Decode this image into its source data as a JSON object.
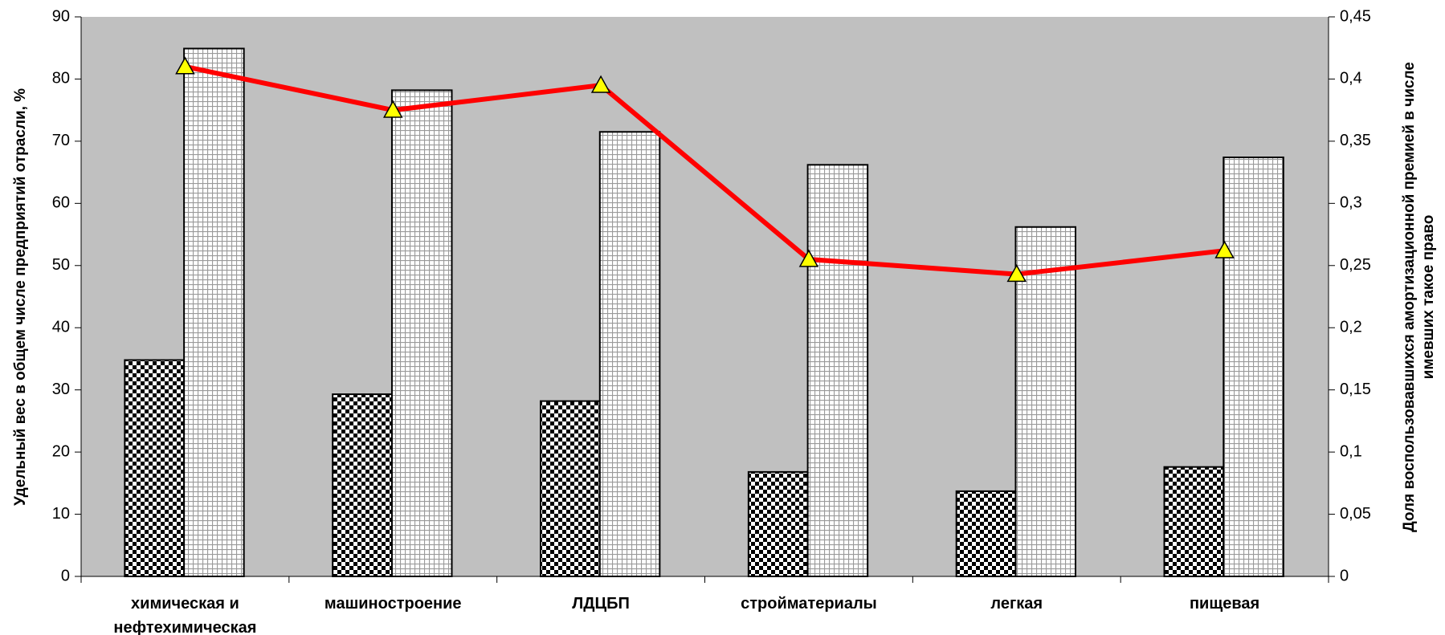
{
  "chart_data": {
    "type": "bar",
    "y_label": "Удельный вес в общем числе предприятий отрасли, %",
    "y2_label": "Доля воспользовавшихся амортизационной премией в числе имевших такое право",
    "categories": [
      "химическая и нефтехимическая",
      "машиностроение",
      "ЛДЦБП",
      "стройматериалы",
      "легкая",
      "пищевая"
    ],
    "series": [
      {
        "type": "bar",
        "pattern": "checker",
        "color": "#000000",
        "values": [
          34.8,
          29.3,
          28.2,
          16.8,
          13.7,
          17.6
        ]
      },
      {
        "type": "bar",
        "pattern": "grid",
        "color": "#9a9a9a",
        "values": [
          84.9,
          78.2,
          71.5,
          66.2,
          56.2,
          67.4
        ]
      },
      {
        "type": "line",
        "axis": "y2",
        "color": "#ff0000",
        "marker_color": "#ffff00",
        "values": [
          0.41,
          0.375,
          0.395,
          0.255,
          0.243,
          0.262
        ]
      }
    ],
    "ylim": [
      0,
      90
    ],
    "yticks": [
      0,
      10,
      20,
      30,
      40,
      50,
      60,
      70,
      80,
      90
    ],
    "y2lim": [
      0,
      0.45
    ],
    "y2ticks": [
      0,
      {
        "value": 0.05,
        "label": "0,05"
      },
      {
        "value": 0.1,
        "label": "0,1"
      },
      {
        "value": 0.15,
        "label": "0,15"
      },
      {
        "value": 0.2,
        "label": "0,2"
      },
      {
        "value": 0.25,
        "label": "0,25"
      },
      {
        "value": 0.3,
        "label": "0,3"
      },
      {
        "value": 0.35,
        "label": "0,35"
      },
      {
        "value": 0.4,
        "label": "0,4"
      },
      {
        "value": 0.45,
        "label": "0,45"
      }
    ],
    "plot_background": "#c0c0c0"
  }
}
